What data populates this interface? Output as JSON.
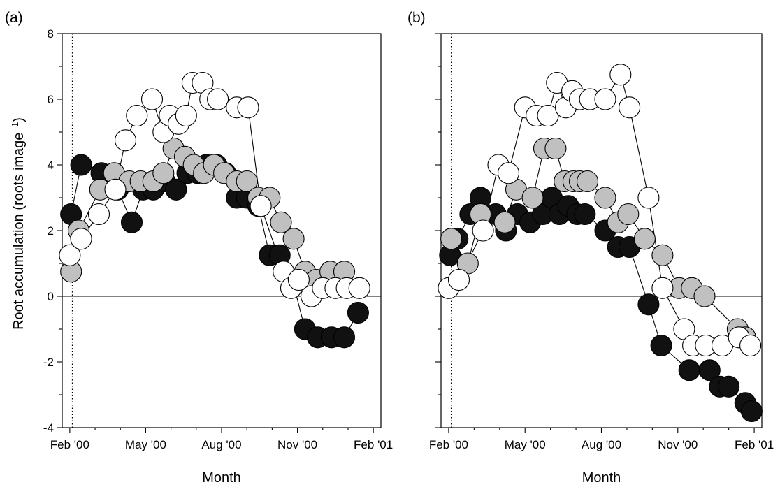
{
  "chart_data": {
    "type": "scatter",
    "ylabel_main": "Root accumulation (roots image",
    "ylabel_sup": "−1",
    "ylabel_close": ")",
    "xlabel": "Month",
    "y_ticks": [
      "-4",
      "-2",
      "0",
      "2",
      "4",
      "6",
      "8"
    ],
    "x_ticks": [
      "Feb '00",
      "May '00",
      "Aug '00",
      "Nov '00",
      "Feb '01"
    ],
    "x_tick_months": [
      0,
      3,
      6,
      9,
      12
    ],
    "ylim": [
      -4,
      8
    ],
    "xlim_months": [
      -0.3,
      12.3
    ],
    "zero_line": true,
    "vline_month": 0.1,
    "series_colors": {
      "black": "#111111",
      "gray": "#c0c0c0",
      "white": "#ffffff"
    },
    "panels": [
      {
        "label": "(a)",
        "series": [
          {
            "color": "black",
            "x": [
              0.05,
              0.45,
              1.25,
              1.9,
              2.45,
              2.9,
              3.3,
              3.75,
              4.2,
              4.65,
              5.05,
              5.4,
              5.8,
              6.15,
              6.6,
              7.0,
              7.45,
              7.9,
              8.3,
              8.8,
              9.3,
              9.8,
              10.35,
              10.85,
              11.4
            ],
            "y": [
              2.5,
              4.0,
              3.75,
              3.25,
              2.25,
              3.25,
              3.25,
              3.5,
              3.25,
              3.75,
              3.75,
              4.0,
              4.0,
              3.75,
              3.0,
              3.0,
              2.75,
              1.25,
              1.25,
              0.5,
              -1.0,
              -1.25,
              -1.25,
              -1.25,
              -0.5
            ]
          },
          {
            "color": "gray",
            "x": [
              0.05,
              0.35,
              1.2,
              1.75,
              2.35,
              2.8,
              3.3,
              3.7,
              4.1,
              4.55,
              4.9,
              5.3,
              5.7,
              6.1,
              6.6,
              7.0,
              7.45,
              7.9,
              8.35,
              8.85,
              9.3,
              9.75,
              10.3,
              10.85
            ],
            "y": [
              0.75,
              2.0,
              3.25,
              3.75,
              3.5,
              3.5,
              3.5,
              3.75,
              4.5,
              4.25,
              4.0,
              3.75,
              4.0,
              3.75,
              3.5,
              3.5,
              3.0,
              3.0,
              2.25,
              1.75,
              0.75,
              0.5,
              0.75,
              0.75
            ]
          },
          {
            "color": "white",
            "x": [
              0.0,
              0.45,
              1.15,
              1.8,
              2.2,
              2.65,
              3.25,
              3.7,
              3.95,
              4.3,
              4.6,
              4.85,
              5.25,
              5.55,
              5.85,
              6.6,
              7.05,
              7.55,
              8.45,
              8.75,
              9.05,
              9.55,
              10.0,
              10.5,
              10.95,
              11.45
            ],
            "y": [
              1.25,
              1.75,
              2.5,
              3.25,
              4.75,
              5.5,
              6.0,
              5.0,
              5.5,
              5.25,
              5.5,
              6.5,
              6.5,
              6.0,
              6.0,
              5.75,
              5.75,
              2.75,
              0.75,
              0.25,
              0.5,
              0.0,
              0.25,
              0.25,
              0.25,
              0.25
            ]
          }
        ]
      },
      {
        "label": "(b)",
        "series": [
          {
            "color": "black",
            "x": [
              0.05,
              0.35,
              0.85,
              1.25,
              1.85,
              2.25,
              2.7,
              3.2,
              3.7,
              4.05,
              4.35,
              4.7,
              5.05,
              5.35,
              6.15,
              6.65,
              7.1,
              7.85,
              8.35,
              9.45,
              10.25,
              10.65,
              11.0,
              11.65,
              11.9
            ],
            "y": [
              1.25,
              1.75,
              2.5,
              3.0,
              2.5,
              2.0,
              2.5,
              2.25,
              2.5,
              3.0,
              2.5,
              2.75,
              2.5,
              2.5,
              2.0,
              1.5,
              1.5,
              -0.25,
              -1.5,
              -2.25,
              -2.25,
              -2.75,
              -2.75,
              -3.25,
              -3.5
            ]
          },
          {
            "color": "gray",
            "x": [
              0.1,
              0.75,
              1.25,
              2.2,
              2.65,
              3.3,
              3.75,
              4.2,
              4.55,
              4.9,
              5.15,
              5.45,
              6.15,
              6.65,
              7.05,
              7.7,
              8.4,
              9.05,
              9.55,
              10.05,
              11.35,
              11.65
            ],
            "y": [
              1.75,
              1.0,
              2.5,
              2.25,
              3.25,
              3.0,
              4.5,
              4.5,
              3.5,
              3.5,
              3.5,
              3.5,
              3.0,
              2.25,
              2.5,
              1.75,
              1.25,
              0.25,
              0.25,
              0.0,
              -1.0,
              -1.25
            ]
          },
          {
            "color": "white",
            "x": [
              0.0,
              0.4,
              1.35,
              1.95,
              2.35,
              3.0,
              3.45,
              3.9,
              4.25,
              4.6,
              4.85,
              5.15,
              5.55,
              6.15,
              6.75,
              7.1,
              7.85,
              8.4,
              9.25,
              9.6,
              10.1,
              10.75,
              11.4,
              11.85
            ],
            "y": [
              0.25,
              0.5,
              2.0,
              4.0,
              3.75,
              5.75,
              5.5,
              5.5,
              6.5,
              5.75,
              6.25,
              6.0,
              6.0,
              6.0,
              6.75,
              5.75,
              3.0,
              0.25,
              -1.0,
              -1.5,
              -1.5,
              -1.5,
              -1.25,
              -1.5
            ]
          }
        ]
      }
    ]
  }
}
